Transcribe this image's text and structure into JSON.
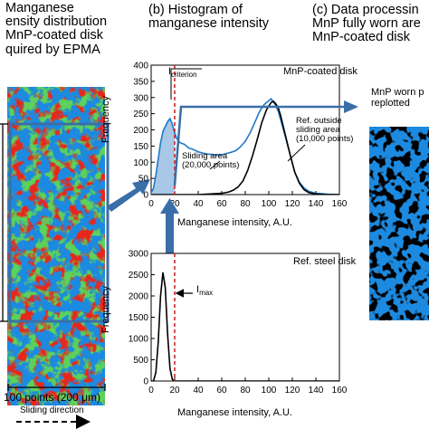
{
  "panel_a": {
    "title_lines": [
      "Manganese",
      "ensity distribution",
      "MnP-coated disk",
      "quired by EPMA"
    ],
    "width_label": "100 points (200 μm)",
    "direction_label": "Sliding direction"
  },
  "panel_b": {
    "title_lines": [
      "(b) Histogram of",
      "manganese intensity"
    ]
  },
  "panel_c": {
    "title_lines": [
      "(c) Data processin",
      "MnP fully worn are",
      "MnP-coated disk"
    ],
    "worn_label_lines": [
      "MnP worn  p",
      "replotted"
    ]
  },
  "colors": {
    "red": "#e8261b",
    "green": "#5bd15b",
    "blue": "#1e8ae0",
    "frame_blue": "#3a6ea8",
    "hist_blue": "#1f78c8",
    "hist_fill": "#a9c8e8",
    "criterion_red": "#cc1a1a",
    "dark_bg": "#000000"
  },
  "chart_data": [
    {
      "type": "line",
      "title": "MnP-coated disk",
      "xlabel": "Manganese intensity, A.U.",
      "ylabel": "Frequency",
      "xlim": [
        0,
        160
      ],
      "ylim": [
        0,
        400
      ],
      "xticks": [
        0,
        20,
        40,
        60,
        80,
        100,
        120,
        140,
        160
      ],
      "yticks": [
        0,
        50,
        100,
        150,
        200,
        250,
        300,
        350,
        400
      ],
      "criterion_label": "I",
      "criterion_sub": "criterion",
      "criterion_x": 20,
      "annotations": [
        {
          "lines": [
            "Sliding area",
            "(20,000 points)"
          ]
        },
        {
          "lines": [
            "Ref. outside",
            "sliding area",
            "(10,000 points)"
          ]
        }
      ],
      "series": [
        {
          "name": "Sliding area (20,000 points)",
          "color": "#1f78c8",
          "x": [
            0,
            2,
            4,
            6,
            8,
            10,
            12,
            14,
            16,
            18,
            20,
            22,
            24,
            26,
            28,
            30,
            32,
            35,
            38,
            40,
            44,
            48,
            52,
            56,
            60,
            64,
            68,
            72,
            76,
            80,
            84,
            88,
            92,
            96,
            100,
            102,
            104,
            106,
            108,
            110,
            114,
            118,
            122,
            126,
            130,
            134,
            140,
            150,
            160
          ],
          "y": [
            5,
            20,
            60,
            110,
            160,
            195,
            210,
            225,
            235,
            218,
            190,
            172,
            162,
            158,
            156,
            150,
            144,
            140,
            136,
            132,
            128,
            125,
            124,
            122,
            123,
            127,
            131,
            136,
            148,
            165,
            190,
            222,
            256,
            278,
            290,
            296,
            285,
            275,
            258,
            232,
            180,
            125,
            70,
            38,
            20,
            10,
            4,
            1,
            0
          ]
        },
        {
          "name": "Ref. outside sliding area (10,000 points)",
          "color": "#000000",
          "x": [
            0,
            20,
            40,
            50,
            60,
            66,
            70,
            74,
            78,
            82,
            86,
            90,
            94,
            98,
            102,
            104,
            106,
            108,
            110,
            114,
            118,
            122,
            126,
            130,
            134,
            140,
            150,
            160
          ],
          "y": [
            0,
            0,
            0,
            2,
            4,
            8,
            14,
            24,
            42,
            74,
            118,
            168,
            222,
            262,
            285,
            288,
            280,
            268,
            245,
            185,
            125,
            70,
            35,
            15,
            6,
            2,
            0,
            0
          ]
        }
      ]
    },
    {
      "type": "line",
      "title": "Ref. steel disk",
      "xlabel": "Manganese intensity, A.U.",
      "ylabel": "Frequency",
      "xlim": [
        0,
        160
      ],
      "ylim": [
        0,
        3000
      ],
      "xticks": [
        0,
        20,
        40,
        60,
        80,
        100,
        120,
        140,
        160
      ],
      "yticks": [
        0,
        500,
        1000,
        1500,
        2000,
        2500,
        3000
      ],
      "imax_label": "I",
      "imax_sub": "max",
      "series": [
        {
          "name": "Ref. steel disk",
          "color": "#000000",
          "x": [
            0,
            2,
            4,
            6,
            8,
            10,
            12,
            14,
            16,
            18,
            20,
            30,
            160
          ],
          "y": [
            0,
            0,
            200,
            900,
            2000,
            2550,
            2200,
            1100,
            300,
            40,
            0,
            0,
            0
          ]
        }
      ]
    }
  ]
}
